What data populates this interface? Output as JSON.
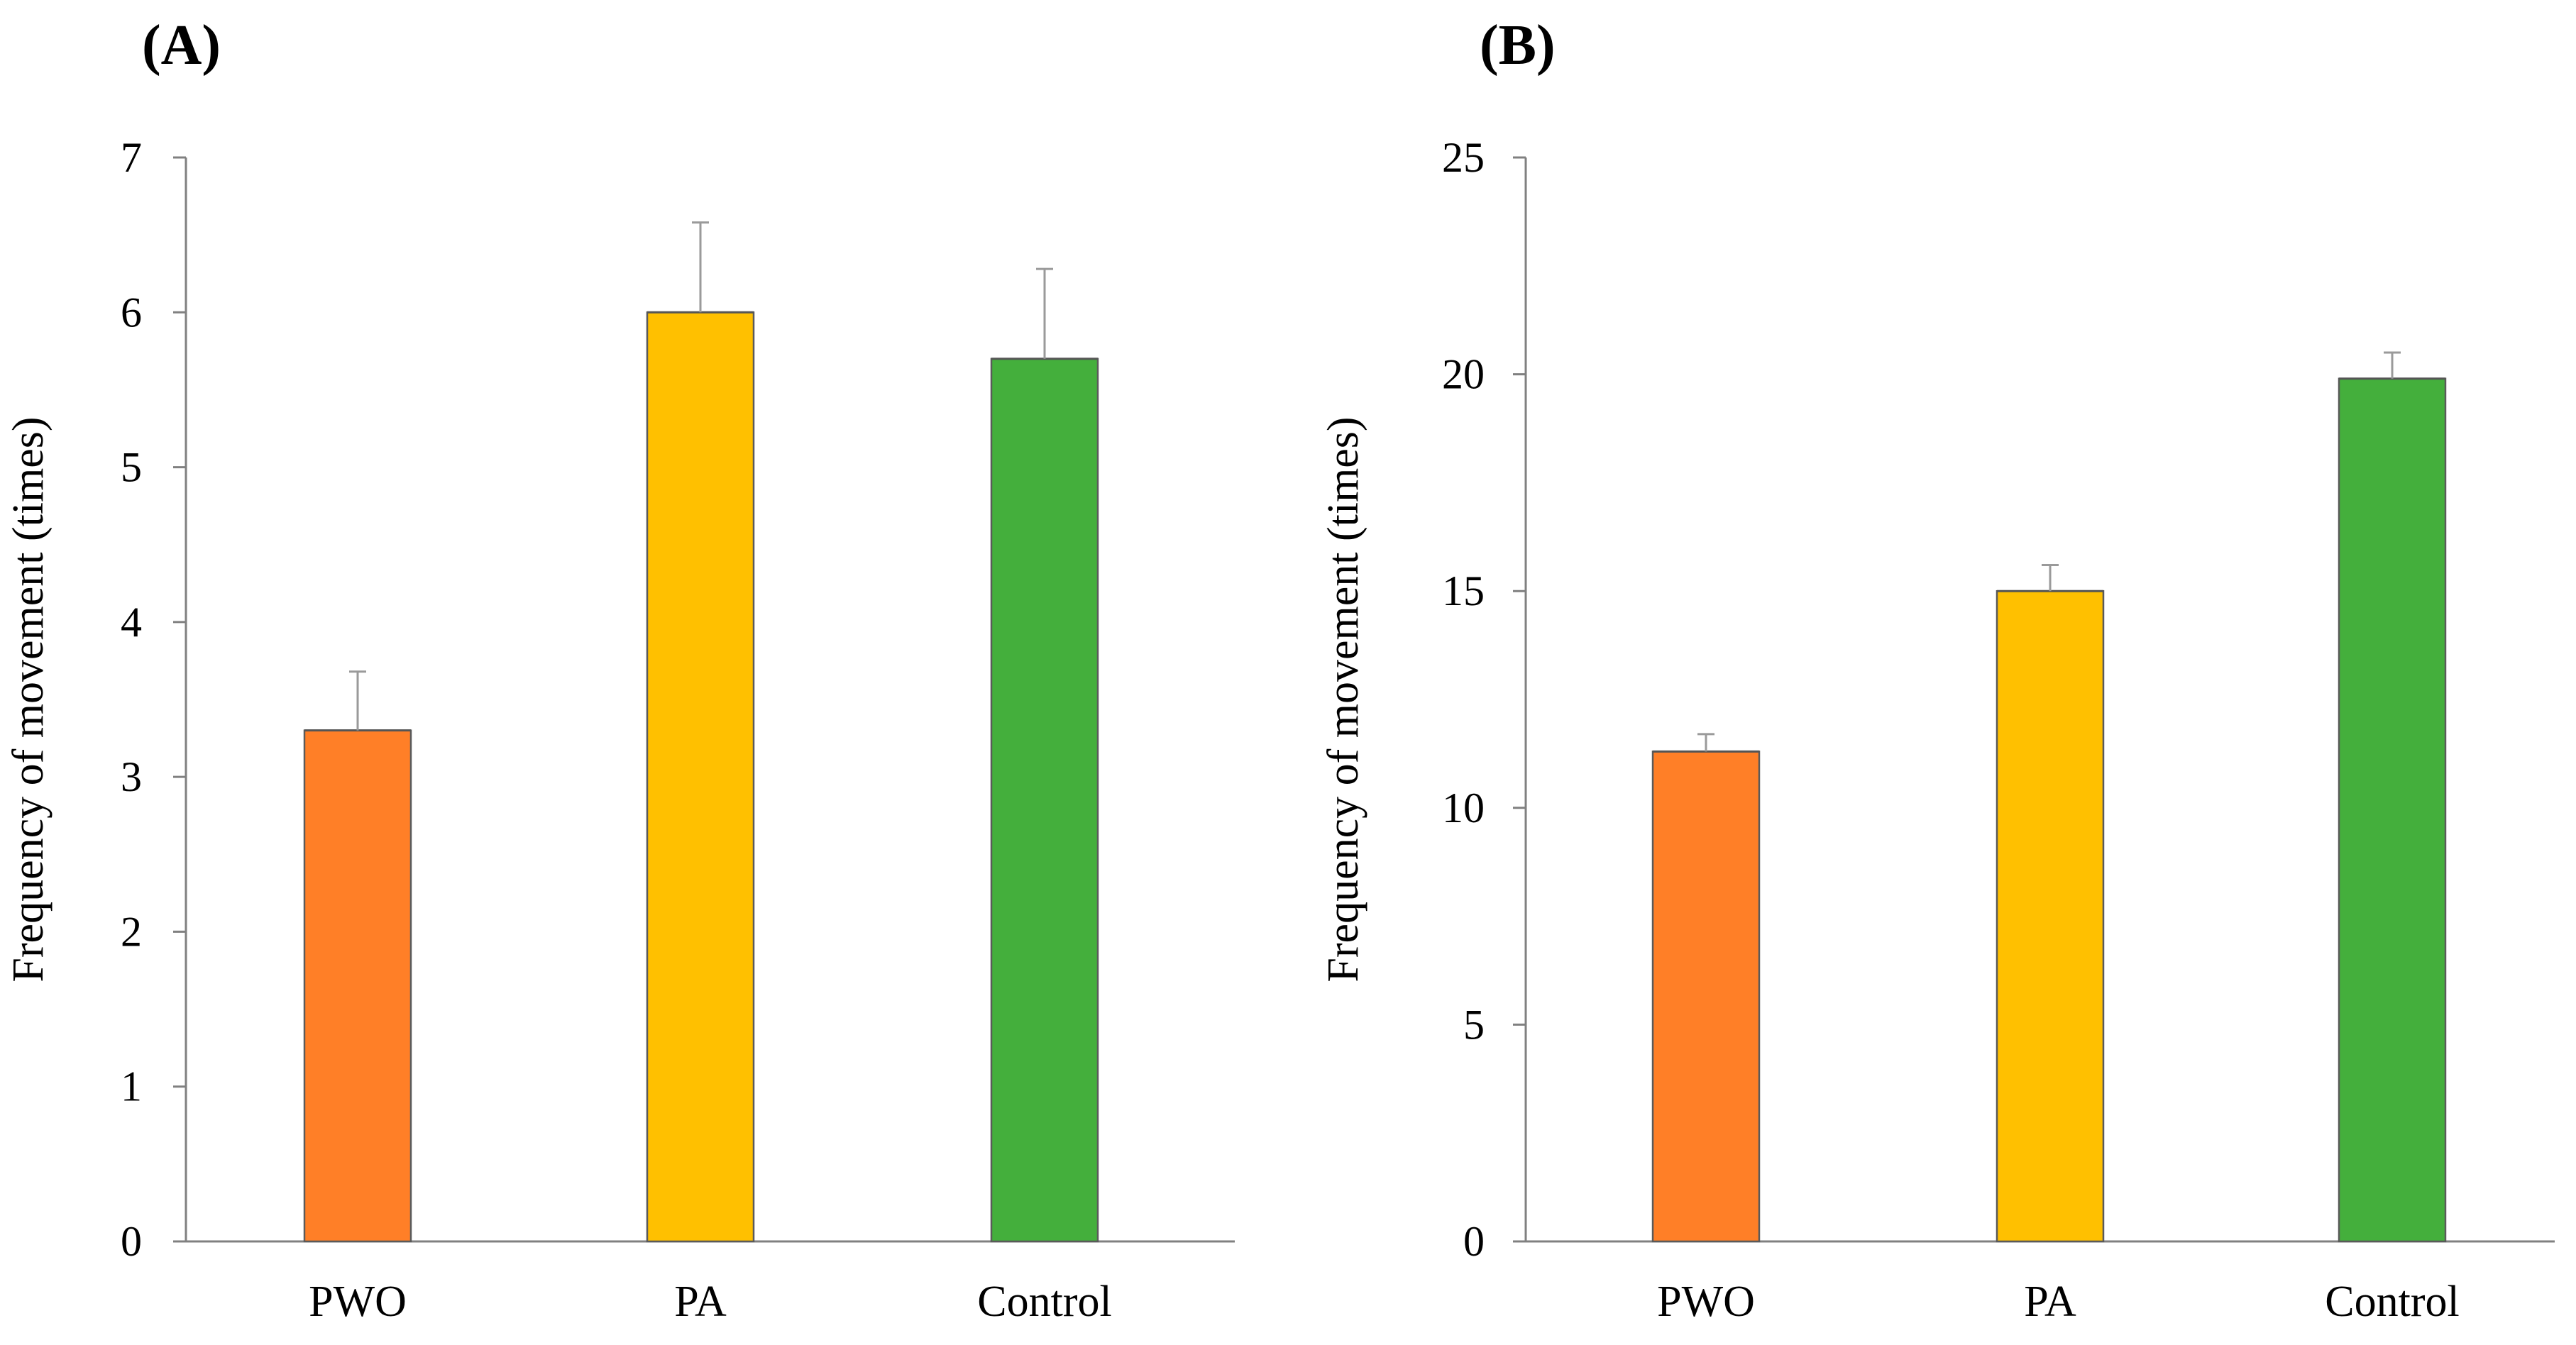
{
  "chart_data": [
    {
      "type": "bar",
      "panel_label": "(A)",
      "categories": [
        "PWO",
        "PA",
        "Control"
      ],
      "values": [
        3.3,
        6.0,
        5.7
      ],
      "errors": [
        0.38,
        0.58,
        0.58
      ],
      "colors": [
        "#FF7F27",
        "#FFC000",
        "#44AF3C"
      ],
      "ylabel": "Frequency of  movement (times)",
      "xlabel": "",
      "ylim": [
        0,
        7
      ],
      "yticks": [
        0,
        1,
        2,
        3,
        4,
        5,
        6,
        7
      ],
      "ytick_labels": [
        "0",
        "1",
        "2",
        "3",
        "4",
        "5",
        "6",
        "7"
      ],
      "grid": false
    },
    {
      "type": "bar",
      "panel_label": "(B)",
      "categories": [
        "PWO",
        "PA",
        "Control"
      ],
      "values": [
        11.3,
        15.0,
        19.9
      ],
      "errors": [
        0.4,
        0.6,
        0.6
      ],
      "colors": [
        "#FF7F27",
        "#FFC000",
        "#44AF3C"
      ],
      "ylabel": "Frequency of  movement (times)",
      "xlabel": "",
      "ylim": [
        0,
        25
      ],
      "yticks": [
        0,
        5,
        10,
        15,
        20,
        25
      ],
      "ytick_labels": [
        "0",
        "5",
        "10",
        "15",
        "20",
        "25"
      ],
      "grid": false
    }
  ]
}
